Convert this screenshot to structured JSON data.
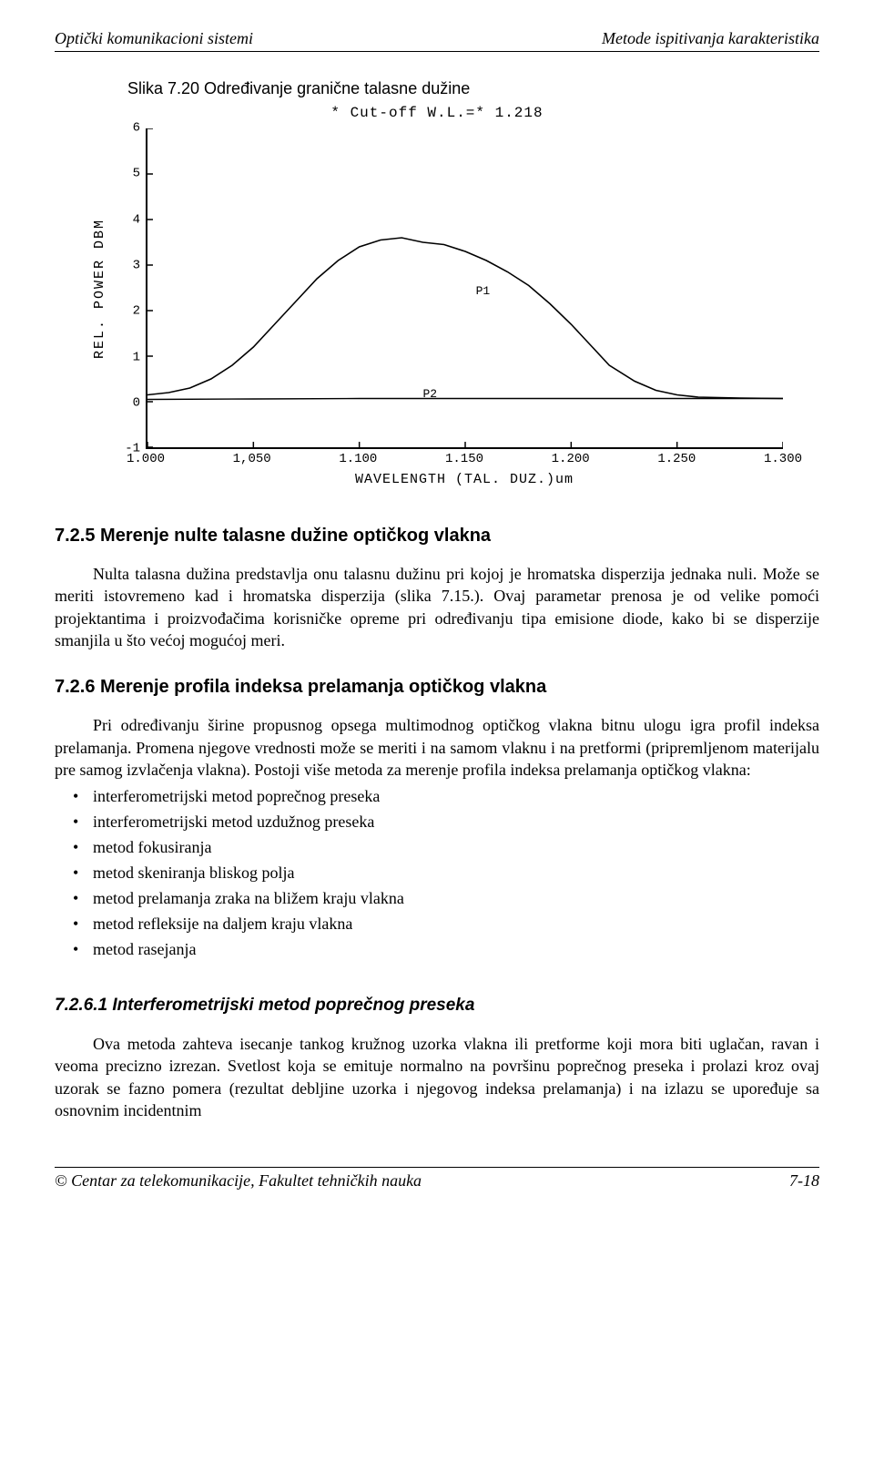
{
  "header": {
    "left": "Optički komunikacioni sistemi",
    "right": "Metode ispitivanja karakteristika"
  },
  "figure": {
    "caption": "Slika 7.20 Određivanje granične talasne dužine",
    "chart": {
      "type": "line",
      "title": "* Cut-off W.L.=*   1.218",
      "ylabel": "REL. POWER   DBM",
      "xlabel": "WAVELENGTH (TAL. DUZ.)um",
      "xlim": [
        1.0,
        1.3
      ],
      "ylim": [
        -1,
        6
      ],
      "xticks": [
        {
          "pos": 1.0,
          "label": "1.000"
        },
        {
          "pos": 1.05,
          "label": "1,050"
        },
        {
          "pos": 1.1,
          "label": "1.100"
        },
        {
          "pos": 1.15,
          "label": "1.150"
        },
        {
          "pos": 1.2,
          "label": "1.200"
        },
        {
          "pos": 1.25,
          "label": "1.250"
        },
        {
          "pos": 1.3,
          "label": "1.300"
        }
      ],
      "yticks": [
        {
          "pos": -1,
          "label": "-1"
        },
        {
          "pos": 0,
          "label": "0"
        },
        {
          "pos": 1,
          "label": "1"
        },
        {
          "pos": 2,
          "label": "2"
        },
        {
          "pos": 3,
          "label": "3"
        },
        {
          "pos": 4,
          "label": "4"
        },
        {
          "pos": 5,
          "label": "5"
        },
        {
          "pos": 6,
          "label": "6"
        }
      ],
      "series": [
        {
          "name": "P1",
          "label_xy": [
            1.155,
            2.6
          ],
          "color": "#000000",
          "line_width": 1.6,
          "points": [
            [
              1.0,
              0.15
            ],
            [
              1.01,
              0.2
            ],
            [
              1.02,
              0.3
            ],
            [
              1.03,
              0.5
            ],
            [
              1.04,
              0.8
            ],
            [
              1.05,
              1.2
            ],
            [
              1.06,
              1.7
            ],
            [
              1.07,
              2.2
            ],
            [
              1.08,
              2.7
            ],
            [
              1.09,
              3.1
            ],
            [
              1.1,
              3.4
            ],
            [
              1.11,
              3.55
            ],
            [
              1.12,
              3.6
            ],
            [
              1.13,
              3.5
            ],
            [
              1.14,
              3.45
            ],
            [
              1.15,
              3.3
            ],
            [
              1.16,
              3.1
            ],
            [
              1.17,
              2.85
            ],
            [
              1.18,
              2.55
            ],
            [
              1.19,
              2.15
            ],
            [
              1.2,
              1.7
            ],
            [
              1.21,
              1.2
            ],
            [
              1.218,
              0.8
            ],
            [
              1.23,
              0.45
            ],
            [
              1.24,
              0.25
            ],
            [
              1.25,
              0.15
            ],
            [
              1.26,
              0.1
            ],
            [
              1.28,
              0.08
            ],
            [
              1.3,
              0.07
            ]
          ]
        },
        {
          "name": "P2",
          "label_xy": [
            1.13,
            0.35
          ],
          "color": "#000000",
          "line_width": 1.4,
          "points": [
            [
              1.0,
              0.05
            ],
            [
              1.05,
              0.06
            ],
            [
              1.1,
              0.07
            ],
            [
              1.15,
              0.07
            ],
            [
              1.2,
              0.07
            ],
            [
              1.25,
              0.07
            ],
            [
              1.3,
              0.07
            ]
          ]
        }
      ],
      "axis_color": "#000000",
      "background_color": "#ffffff",
      "tick_font": "Courier New",
      "tick_fontsize": 14,
      "label_fontsize": 15
    }
  },
  "sections": {
    "s725": {
      "heading": "7.2.5  Merenje nulte talasne dužine optičkog vlakna",
      "para": "Nulta talasna dužina predstavlja onu talasnu dužinu pri kojoj je hromatska disperzija jednaka nuli. Može se meriti istovremeno kad i hromatska disperzija (slika 7.15.). Ovaj parametar prenosa je od velike pomoći projektantima i proizvođačima korisničke opreme pri određivanju tipa emisione diode, kako bi se disperzije smanjila u što većoj mogućoj meri."
    },
    "s726": {
      "heading": "7.2.6  Merenje profila indeksa prelamanja optičkog vlakna",
      "para": "Pri određivanju širine propusnog opsega multimodnog optičkog vlakna bitnu ulogu igra profil indeksa prelamanja. Promena njegove vrednosti može se meriti i na samom vlaknu i na pretformi (pripremljenom materijalu pre samog izvlačenja vlakna). Postoji više metoda za merenje profila indeksa prelamanja optičkog vlakna:",
      "bullets": [
        "interferometrijski metod poprečnog preseka",
        "interferometrijski metod uzdužnog preseka",
        "metod fokusiranja",
        "metod skeniranja bliskog polja",
        "metod prelamanja zraka na bližem kraju vlakna",
        "metod refleksije na daljem kraju vlakna",
        "metod rasejanja"
      ]
    },
    "s7261": {
      "heading": "7.2.6.1   Interferometrijski metod poprečnog preseka",
      "para": "Ova metoda zahteva isecanje tankog kružnog uzorka vlakna ili pretforme koji mora biti uglačan, ravan i veoma precizno izrezan. Svetlost koja se emituje normalno na površinu poprečnog preseka i prolazi kroz ovaj uzorak se fazno pomera (rezultat debljine uzorka i njegovog indeksa prelamanja) i na izlazu se upoređuje sa osnovnim incidentnim"
    }
  },
  "footer": {
    "left": "© Centar za telekomunikacije, Fakultet tehničkih nauka",
    "right": "7-18"
  }
}
